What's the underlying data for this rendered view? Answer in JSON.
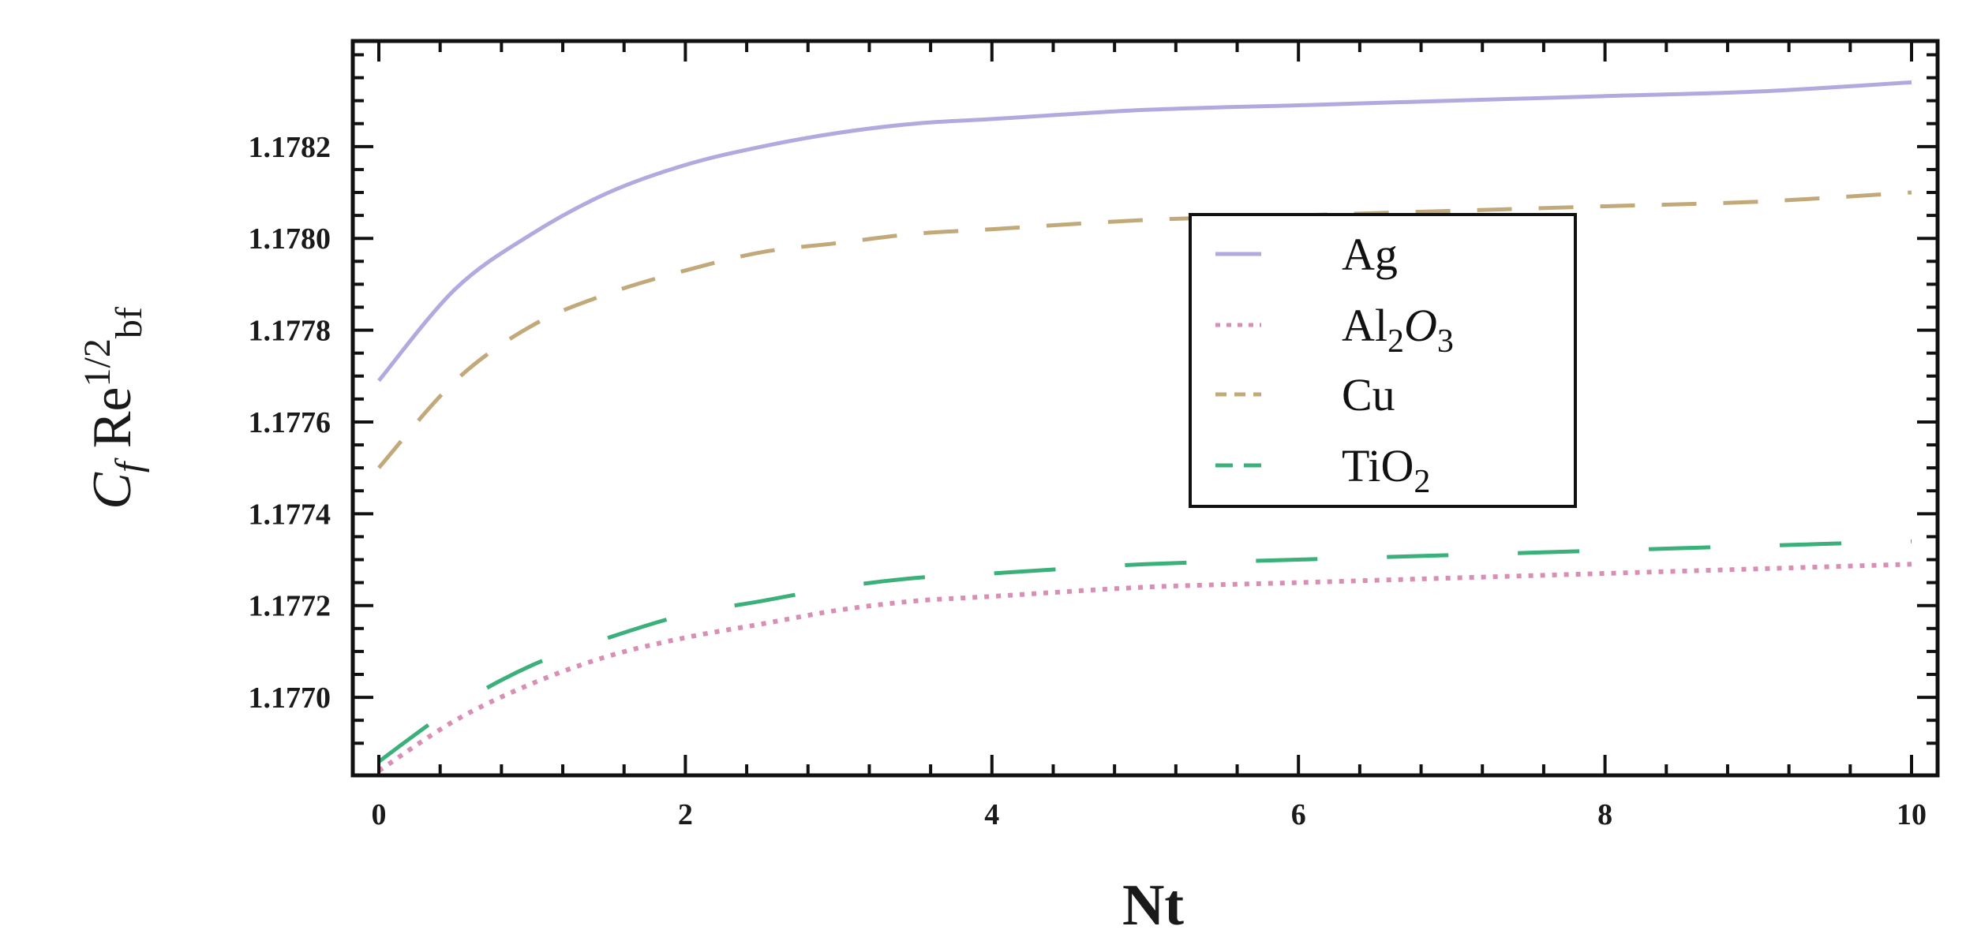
{
  "chart_data": {
    "type": "line",
    "xlabel": "Nt",
    "ylabel": {
      "base": "C",
      "sub1": "f",
      "mid": " Re",
      "sup": "1/2",
      "sub2": "bf"
    },
    "xlim": [
      0,
      10
    ],
    "ylim": [
      1.17683,
      1.17843
    ],
    "xticks": [
      0,
      2,
      4,
      6,
      8,
      10
    ],
    "xtick_labels": [
      "0",
      "2",
      "4",
      "6",
      "8",
      "10"
    ],
    "yticks": [
      1.177,
      1.1772,
      1.1774,
      1.1776,
      1.1778,
      1.178,
      1.1782
    ],
    "ytick_labels": [
      "1.1770",
      "1.1772",
      "1.1774",
      "1.1776",
      "1.1778",
      "1.1780",
      "1.1782"
    ],
    "grid": false,
    "legend_position": "center-right",
    "x": [
      0,
      0.5,
      1,
      1.5,
      2,
      2.5,
      3,
      3.5,
      4,
      5,
      6,
      7,
      8,
      9,
      10
    ],
    "series": [
      {
        "name": "Ag",
        "style": "solid",
        "color": "#b3a9de",
        "values": [
          1.17769,
          1.17789,
          1.17801,
          1.1781,
          1.17816,
          1.1782,
          1.17823,
          1.17825,
          1.17826,
          1.17828,
          1.17829,
          1.1783,
          1.17831,
          1.17832,
          1.17834
        ]
      },
      {
        "name": "Al₂O₃",
        "legend": {
          "base": "Al",
          "sub": "2",
          "base2": "O",
          "sub2": "3"
        },
        "style": "dotted",
        "color": "#d98fb4",
        "values": [
          1.17684,
          1.17695,
          1.17703,
          1.17709,
          1.17713,
          1.17716,
          1.17719,
          1.17721,
          1.17722,
          1.17724,
          1.17725,
          1.17726,
          1.17727,
          1.17728,
          1.17729
        ]
      },
      {
        "name": "Cu",
        "style": "dashed",
        "color": "#c2a97a",
        "values": [
          1.1775,
          1.17769,
          1.17781,
          1.17788,
          1.17793,
          1.17797,
          1.17799,
          1.17801,
          1.17802,
          1.17804,
          1.17805,
          1.17806,
          1.17807,
          1.17808,
          1.1781
        ]
      },
      {
        "name": "TiO₂",
        "legend": {
          "base": "TiO",
          "sub": "2"
        },
        "style": "long-dashed",
        "color": "#3bb07a",
        "values": [
          1.17686,
          1.17698,
          1.17707,
          1.17713,
          1.17718,
          1.17721,
          1.17724,
          1.17726,
          1.17727,
          1.17729,
          1.1773,
          1.17731,
          1.17732,
          1.17733,
          1.17734
        ]
      }
    ]
  }
}
